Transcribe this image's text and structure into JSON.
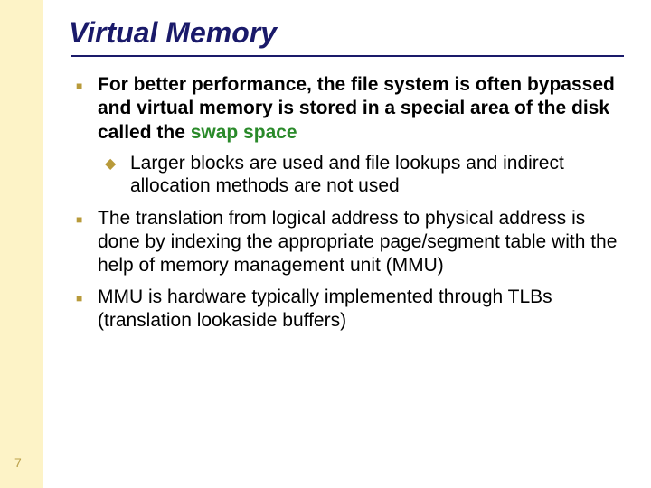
{
  "title": "Virtual Memory",
  "colors": {
    "sidebar_bg": "#fdf3c7",
    "title_color": "#1a1a6a",
    "rule_color": "#1a1a6a",
    "bullet_color": "#b89a3a",
    "highlight_color": "#2a8a2a",
    "body_text": "#000000",
    "page_num_color": "#baa04a",
    "background": "#ffffff"
  },
  "typography": {
    "title_fontsize": 32,
    "body_fontsize": 21,
    "title_italic": true,
    "title_bold": true
  },
  "bullets": [
    {
      "level": 1,
      "bold": true,
      "text_pre": "For better performance, the file system is often bypassed and virtual memory is stored in a special area of the disk called the ",
      "highlight": "swap space",
      "text_post": ""
    },
    {
      "level": 2,
      "bold": false,
      "text": "Larger blocks are used and file lookups and indirect allocation methods are not used"
    },
    {
      "level": 1,
      "bold": false,
      "text": "The translation from logical address to physical address is done by indexing the appropriate page/segment table with the help of memory management unit (MMU)"
    },
    {
      "level": 1,
      "bold": false,
      "text": "MMU is hardware typically implemented through TLBs (translation lookaside buffers)"
    }
  ],
  "page_number": "7"
}
